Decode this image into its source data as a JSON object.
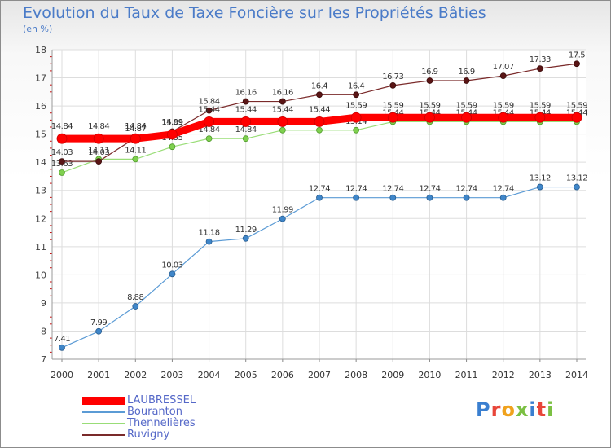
{
  "title": "Evolution du Taux de Taxe Foncière sur les Propriétés Bâties",
  "unit_label": "(en %)",
  "logo": {
    "text": "Proxiti",
    "letter_colors": [
      "#3a7fd0",
      "#e8463a",
      "#f0a21e",
      "#7bc043",
      "#3a7fd0",
      "#e8463a",
      "#7bc043"
    ]
  },
  "chart_data": {
    "type": "line",
    "x": [
      2000,
      2001,
      2002,
      2003,
      2004,
      2005,
      2006,
      2007,
      2008,
      2009,
      2010,
      2011,
      2012,
      2013,
      2014
    ],
    "ylim": [
      7,
      18
    ],
    "yticks": [
      7,
      8,
      9,
      10,
      11,
      12,
      13,
      14,
      15,
      16,
      17,
      18
    ],
    "grid": true,
    "legend_position": "bottom-left",
    "series": [
      {
        "name": "LAUBRESSEL",
        "color": "#ff0000",
        "values": [
          14.84,
          14.84,
          14.84,
          14.99,
          15.44,
          15.44,
          15.44,
          15.44,
          15.59,
          15.59,
          15.59,
          15.59,
          15.59,
          15.59,
          15.59
        ],
        "labels": [
          "14.84",
          "14.84",
          "14.84",
          "14.99",
          "15.44",
          "15.44",
          "15.44",
          "15.44",
          "15.59",
          "15.59",
          "15.59",
          "15.59",
          "15.59",
          "15.59",
          "15.59"
        ]
      },
      {
        "name": "Bouranton",
        "color": "#5b9bd5",
        "values": [
          7.41,
          7.99,
          8.88,
          10.03,
          11.18,
          11.29,
          11.99,
          12.74,
          12.74,
          12.74,
          12.74,
          12.74,
          12.74,
          13.12,
          13.12
        ],
        "labels": [
          "7.41",
          "7.99",
          "8.88",
          "10.03",
          "11.18",
          "11.29",
          "11.99",
          "12.74",
          "12.74",
          "12.74",
          "12.74",
          "12.74",
          "12.74",
          "13.12",
          "13.12"
        ]
      },
      {
        "name": "Thennelières",
        "color": "#99dd77",
        "values": [
          13.63,
          14.11,
          14.11,
          14.55,
          14.84,
          14.84,
          15.14,
          15.14,
          15.14,
          15.44,
          15.44,
          15.44,
          15.44,
          15.44,
          15.44
        ],
        "labels": [
          "13.63",
          "14.11",
          "14.11",
          "14.55",
          "14.84",
          "14.84",
          "15.14",
          "15.14",
          "15.14",
          "15.44",
          "15.44",
          "15.44",
          "15.44",
          "15.44",
          "15.44"
        ]
      },
      {
        "name": "Ruvigny",
        "color": "#7a2a2a",
        "values": [
          14.03,
          14.03,
          14.87,
          15.09,
          15.84,
          16.16,
          16.16,
          16.4,
          16.4,
          16.73,
          16.9,
          16.9,
          17.07,
          17.33,
          17.5
        ],
        "labels": [
          "14.03",
          "14.03",
          "14.87",
          "15.09",
          "15.84",
          "16.16",
          "16.16",
          "16.4",
          "16.4",
          "16.73",
          "16.9",
          "16.9",
          "17.07",
          "17.33",
          "17.5"
        ]
      }
    ]
  }
}
